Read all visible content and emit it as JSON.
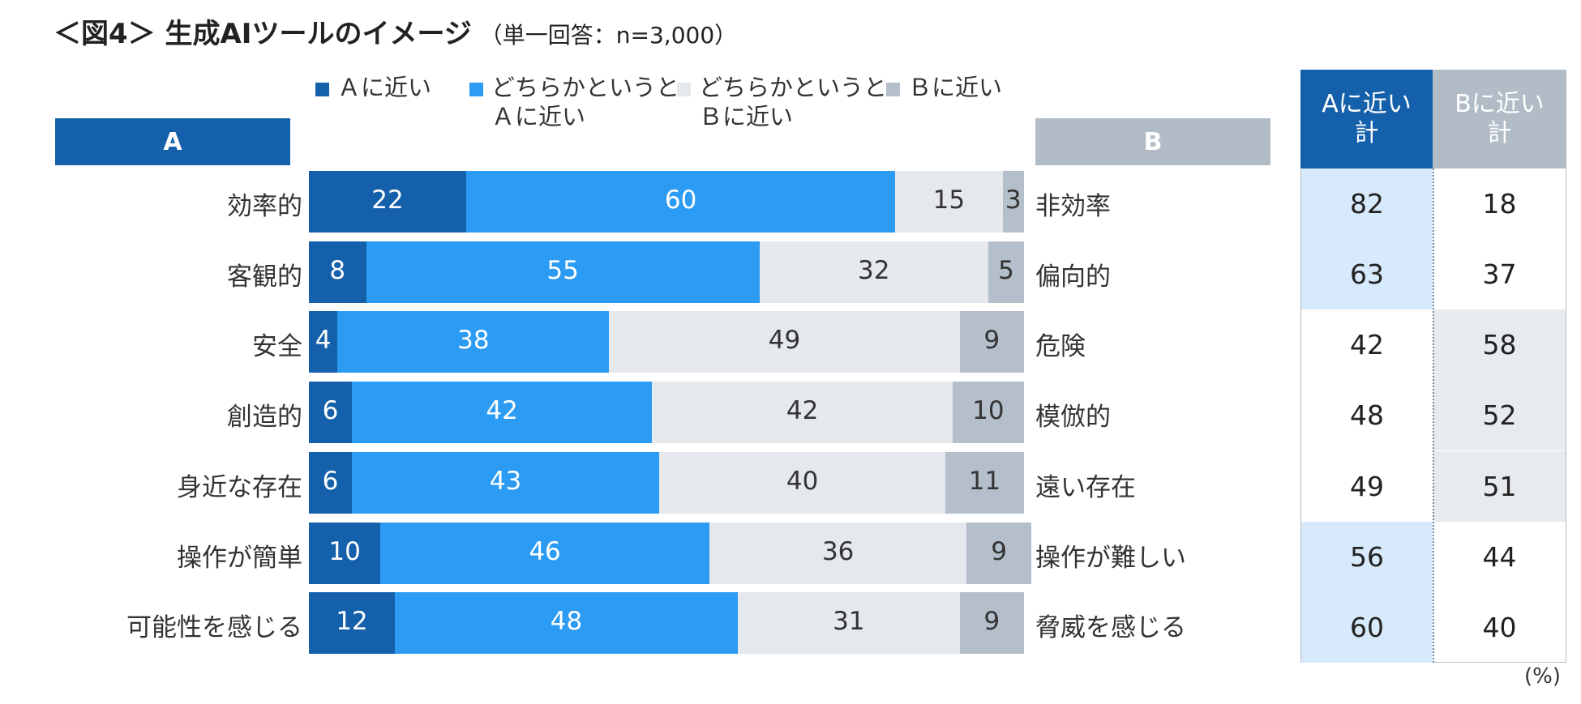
{
  "title": "＜図4＞ 生成AIツールのイメージ",
  "subtitle": "（単一回答：n=3,000）",
  "colors": {
    "a_close": "#1560ab",
    "a_lean": "#2b9bf4",
    "b_lean": "#e5e8ec",
    "b_close": "#b4bfcb",
    "a_header": "#1560ab",
    "b_header": "#b2bcc7",
    "a_total_highlight": "#d7eafb",
    "b_total_highlight": "#e7eaee"
  },
  "legend": [
    {
      "label": "Ａに近い",
      "color": "#1560ab"
    },
    {
      "label": "どちらかというと\nＡに近い",
      "color": "#2b9bf4"
    },
    {
      "label": "どちらかというと\nＢに近い",
      "color": "#e5e8ec"
    },
    {
      "label": "Ｂに近い",
      "color": "#b4bfcb"
    }
  ],
  "header_a": "A",
  "header_b": "B",
  "table": {
    "col_a_header": "Aに近い\n計",
    "col_b_header": "Bに近い\n計"
  },
  "unit_label": "(%)",
  "chart_data": {
    "type": "bar",
    "orientation": "horizontal",
    "stacked": true,
    "percent_stacked": true,
    "categories": [
      "効率的",
      "客観的",
      "安全",
      "創造的",
      "身近な存在",
      "操作が簡単",
      "可能性を感じる"
    ],
    "categories_b": [
      "非効率",
      "偏向的",
      "危険",
      "模倣的",
      "遠い存在",
      "操作が難しい",
      "脅威を感じる"
    ],
    "series": [
      {
        "name": "Ａに近い",
        "values": [
          22,
          8,
          4,
          6,
          6,
          10,
          12
        ]
      },
      {
        "name": "どちらかというとＡに近い",
        "values": [
          60,
          55,
          38,
          42,
          43,
          46,
          48
        ]
      },
      {
        "name": "どちらかというとＢに近い",
        "values": [
          15,
          32,
          49,
          42,
          40,
          36,
          31
        ]
      },
      {
        "name": "Ｂに近い",
        "values": [
          3,
          5,
          9,
          10,
          11,
          9,
          9
        ]
      }
    ],
    "totals": {
      "a": [
        82,
        63,
        42,
        48,
        49,
        56,
        60
      ],
      "b": [
        18,
        37,
        58,
        52,
        51,
        44,
        40
      ]
    },
    "legend_position": "top",
    "grid": false,
    "xlim": [
      0,
      100
    ]
  }
}
